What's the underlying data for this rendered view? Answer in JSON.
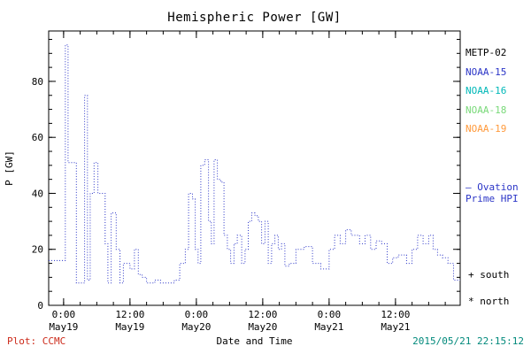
{
  "title": "Hemispheric Power [GW]",
  "chart_data": {
    "type": "line",
    "style": "dotted-step",
    "title": "Hemispheric Power [GW]",
    "xlabel": "Date and Time",
    "ylabel": "P [GW]",
    "ylim": [
      0,
      98
    ],
    "xlim_hours": [
      -2.7,
      71.7
    ],
    "yticks": [
      0,
      20,
      40,
      60,
      80
    ],
    "y_minor_step": 5,
    "x_minor_step_hours": 3,
    "xticks": [
      {
        "hour": 0,
        "time": "0:00",
        "date": "May19"
      },
      {
        "hour": 12,
        "time": "12:00",
        "date": "May19"
      },
      {
        "hour": 24,
        "time": "0:00",
        "date": "May20"
      },
      {
        "hour": 36,
        "time": "12:00",
        "date": "May20"
      },
      {
        "hour": 48,
        "time": "0:00",
        "date": "May21"
      },
      {
        "hour": 60,
        "time": "12:00",
        "date": "May21"
      }
    ],
    "series": [
      {
        "name": "NOAA-15 Hemispheric Power",
        "color": "#2b35c7",
        "x": [
          -2.7,
          0.3,
          0.8,
          2.3,
          3.8,
          4.3,
          4.8,
          5.5,
          6.2,
          7.5,
          8.0,
          8.6,
          9.5,
          10.2,
          10.8,
          12.0,
          12.8,
          13.5,
          14.2,
          15.0,
          16.5,
          17.5,
          19.0,
          20.0,
          21.0,
          22.0,
          22.6,
          23.3,
          23.8,
          24.3,
          24.8,
          25.5,
          26.2,
          26.7,
          27.2,
          27.8,
          28.4,
          29.0,
          29.6,
          30.2,
          30.8,
          31.4,
          32.2,
          32.8,
          33.4,
          34.0,
          34.6,
          35.2,
          35.8,
          36.4,
          37.0,
          37.6,
          38.2,
          38.8,
          39.4,
          40.0,
          40.8,
          42.0,
          43.5,
          45.0,
          46.5,
          48.0,
          49.0,
          50.0,
          51.0,
          52.0,
          53.5,
          54.5,
          55.5,
          56.5,
          57.5,
          58.5,
          59.5,
          60.5,
          62.0,
          63.0,
          64.0,
          65.0,
          66.0,
          66.8,
          67.6,
          68.5,
          69.5,
          70.5,
          71.7
        ],
        "y": [
          16,
          93,
          51,
          8,
          75,
          9,
          40,
          51,
          40,
          22,
          8,
          33,
          20,
          8,
          15,
          13,
          20,
          11,
          10,
          8,
          9,
          8,
          8,
          9,
          15,
          20,
          40,
          38,
          20,
          15,
          50,
          52,
          30,
          22,
          52,
          45,
          44,
          25,
          20,
          15,
          22,
          25,
          15,
          20,
          30,
          33,
          32,
          30,
          22,
          30,
          15,
          22,
          25,
          20,
          22,
          14,
          15,
          20,
          21,
          15,
          13,
          20,
          25,
          22,
          27,
          25,
          22,
          25,
          20,
          23,
          22,
          15,
          17,
          18,
          15,
          20,
          25,
          22,
          25,
          20,
          18,
          17,
          15,
          9,
          9
        ]
      }
    ]
  },
  "legend": {
    "items": [
      {
        "label": "METP-02",
        "color": "#000000"
      },
      {
        "label": "NOAA-15",
        "color": "#2b35c7"
      },
      {
        "label": "NOAA-16",
        "color": "#00b8b8"
      },
      {
        "label": "NOAA-18",
        "color": "#79d979"
      },
      {
        "label": "NOAA-19",
        "color": "#ff9a3c"
      }
    ]
  },
  "annotations": {
    "ovation_line1": "— Ovation",
    "ovation_line2": "Prime HPI",
    "ovation_color": "#2b35c7",
    "south": "+ south",
    "north": "* north"
  },
  "footer": {
    "left": "Plot: CCMC",
    "left_color": "#cc2a1a",
    "right": "2015/05/21 22:15:12",
    "right_color": "#00897b"
  }
}
